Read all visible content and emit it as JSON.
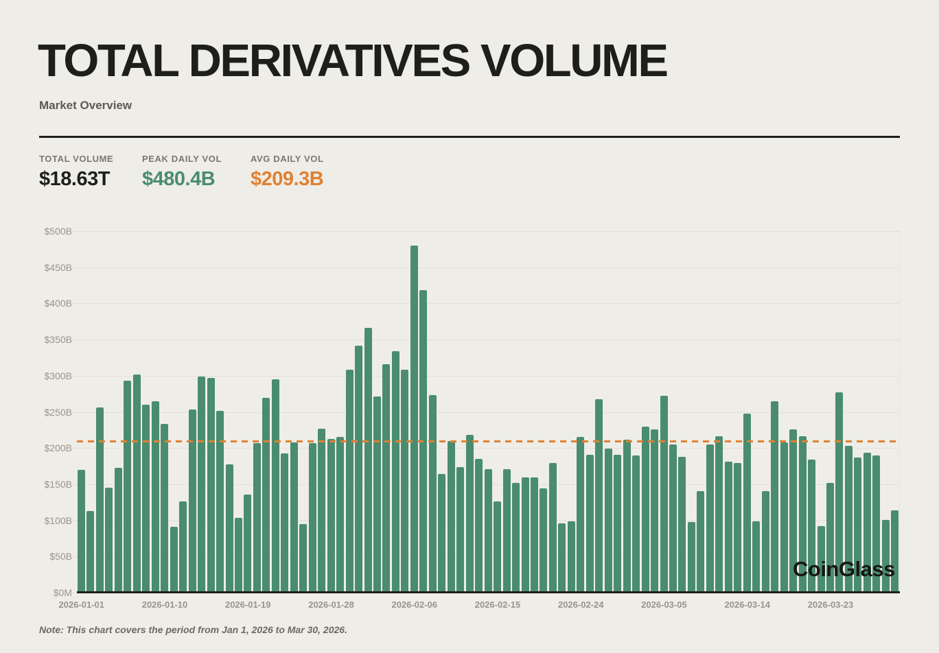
{
  "header": {
    "title": "TOTAL DERIVATIVES VOLUME",
    "subtitle": "Market Overview"
  },
  "stats": [
    {
      "label": "TOTAL VOLUME",
      "value": "$18.63T",
      "color": "#1E1E1C"
    },
    {
      "label": "PEAK DAILY VOL",
      "value": "$480.4B",
      "color": "#4A8C70"
    },
    {
      "label": "AVG DAILY VOL",
      "value": "$209.3B",
      "color": "#DF8133"
    }
  ],
  "watermark": "CoinGlass",
  "note": "Note: This chart covers the period from Jan 1, 2026 to Mar 30, 2026.",
  "chart_data": {
    "type": "bar",
    "title": "Total Derivatives Volume",
    "unit": "USD billions per day",
    "period_start": "2026-01-01",
    "period_end": "2026-03-30",
    "ylim": [
      0,
      500
    ],
    "grid": true,
    "y_tick_step": 50,
    "y_tick_labels": [
      "$0M",
      "$50B",
      "$100B",
      "$150B",
      "$200B",
      "$250B",
      "$300B",
      "$350B",
      "$400B",
      "$450B",
      "$500B"
    ],
    "x_tick_indices": [
      0,
      9,
      18,
      27,
      36,
      45,
      54,
      63,
      72,
      81
    ],
    "x_tick_labels": [
      "2026-01-01",
      "2026-01-10",
      "2026-01-19",
      "2026-01-28",
      "2026-02-06",
      "2026-02-15",
      "2026-02-24",
      "2026-03-05",
      "2026-03-14",
      "2026-03-23"
    ],
    "avg_line_value": 209.3,
    "avg_line_color": "#DF8133",
    "bar_color": "#4A8C70",
    "values": [
      170,
      113,
      256,
      145,
      173,
      293,
      302,
      260,
      265,
      233,
      91,
      126,
      253,
      299,
      297,
      251,
      177,
      103,
      136,
      207,
      269,
      295,
      193,
      208,
      95,
      207,
      227,
      213,
      215,
      308,
      342,
      366,
      271,
      316,
      334,
      308,
      480,
      418,
      273,
      164,
      210,
      174,
      218,
      185,
      171,
      126,
      171,
      152,
      159,
      159,
      144,
      179,
      96,
      99,
      215,
      191,
      268,
      199,
      191,
      212,
      190,
      230,
      226,
      272,
      205,
      188,
      98,
      140,
      205,
      216,
      181,
      179,
      248,
      99,
      140,
      265,
      208,
      226,
      216,
      184,
      92,
      152,
      277,
      203,
      187,
      194,
      190,
      101,
      114
    ]
  }
}
